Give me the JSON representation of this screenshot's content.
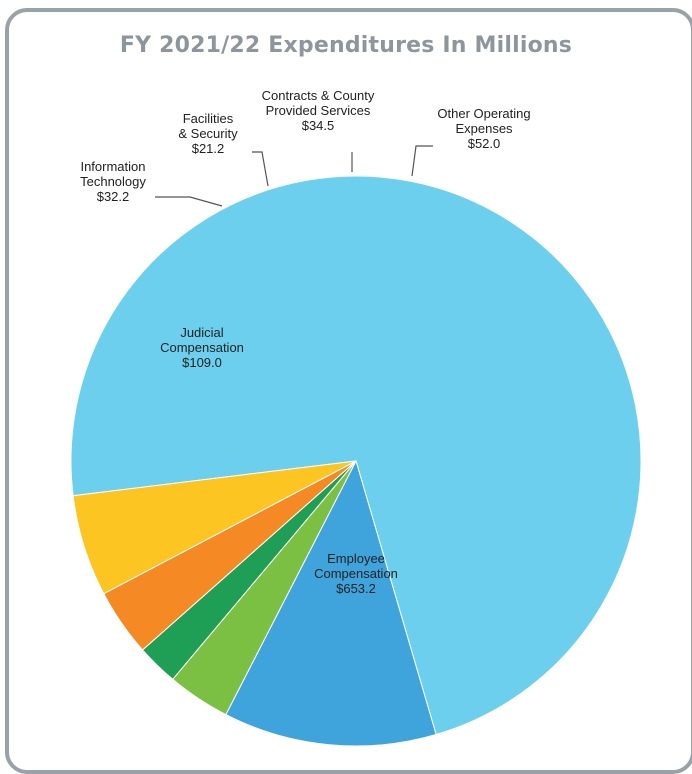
{
  "chart_data": {
    "type": "pie",
    "title": "FY 2021/22 Expenditures In Millions",
    "slices": [
      {
        "label": [
          "Employee",
          "Compensation"
        ],
        "value": 653.2,
        "display": "$653.2",
        "color": "#6ccfee"
      },
      {
        "label": [
          "Judicial",
          "Compensation"
        ],
        "value": 109.0,
        "display": "$109.0",
        "color": "#3fa3dc"
      },
      {
        "label": [
          "Information",
          "Technology"
        ],
        "value": 32.2,
        "display": "$32.2",
        "color": "#7bc043"
      },
      {
        "label": [
          "Facilities",
          "& Security"
        ],
        "value": 21.2,
        "display": "$21.2",
        "color": "#1f9e55"
      },
      {
        "label": [
          "Contracts & County",
          "Provided Services"
        ],
        "value": 34.5,
        "display": "$34.5",
        "color": "#f58a25"
      },
      {
        "label": [
          "Other Operating",
          "Expenses"
        ],
        "value": 52.0,
        "display": "$52.0",
        "color": "#fcc521"
      }
    ]
  }
}
